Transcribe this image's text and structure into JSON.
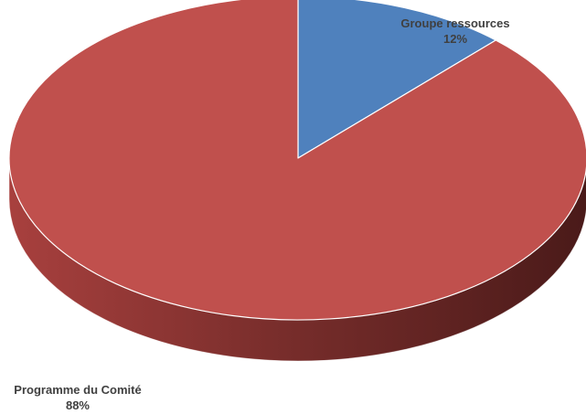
{
  "chart_data": {
    "type": "pie",
    "variant": "3d",
    "title": "",
    "legend": "none",
    "slices": [
      {
        "label": "Groupe ressources",
        "value": 12,
        "value_label": "12%",
        "color": "#4f81bd"
      },
      {
        "label": "Programme du Comité",
        "value": 88,
        "value_label": "88%",
        "color": "#c0504d"
      }
    ]
  }
}
